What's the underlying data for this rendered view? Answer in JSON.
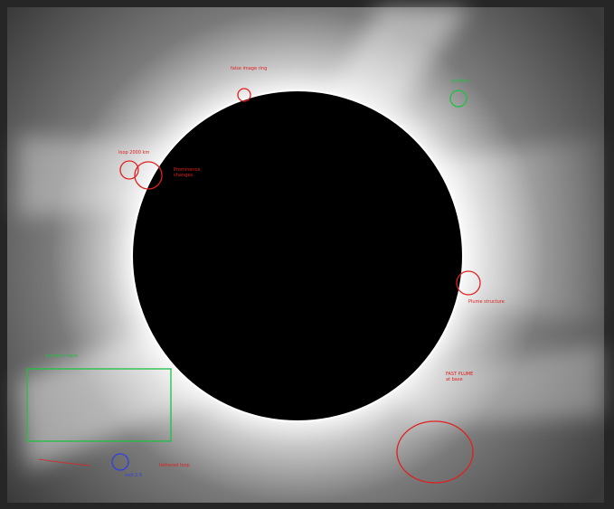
{
  "annotations": {
    "top_ring": "false image ring",
    "artifacts": "artifacts",
    "loop": "loop 2000 km",
    "prominence": [
      "Prominence",
      "changes"
    ],
    "plume": "Plume structure",
    "fast_plume": [
      "FAST PLUME",
      "at base"
    ],
    "streamer": "streamer base",
    "blue": "nolt 2.5",
    "loop_bottom": "tethered loop"
  }
}
